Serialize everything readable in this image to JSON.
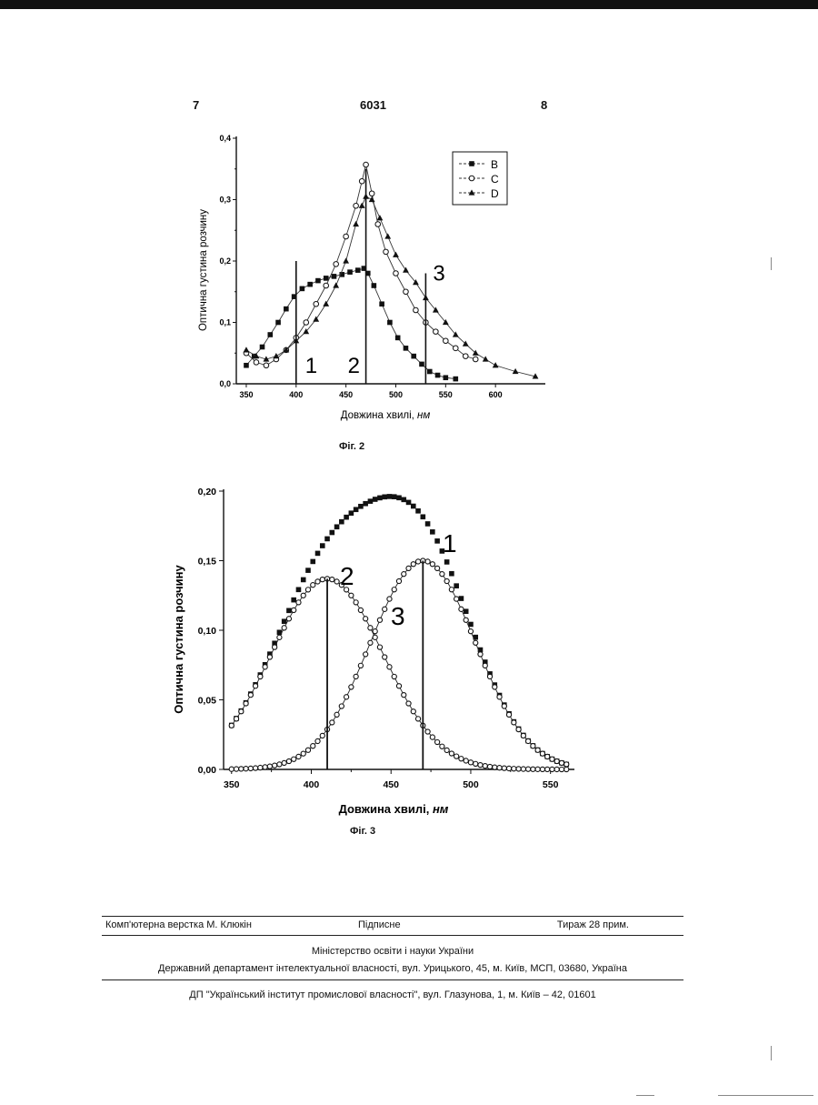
{
  "header": {
    "page_left": "7",
    "patent_number": "6031",
    "page_right": "8"
  },
  "figure2": {
    "caption": "Фіг. 2",
    "chart_data": {
      "type": "line",
      "title": "",
      "xlabel": "Довжина хвилі, ",
      "xlabel_unit": "нм",
      "ylabel": "Оптична густина розчину",
      "xlim": [
        340,
        650
      ],
      "ylim": [
        0,
        0.4
      ],
      "xticks": [
        "350",
        "400",
        "450",
        "500",
        "550",
        "600"
      ],
      "yticks": [
        "0,0",
        "0,1",
        "0,2",
        "0,3",
        "0,4"
      ],
      "legend_position": "top-right",
      "series": [
        {
          "name": "B",
          "marker": "square",
          "x": [
            350,
            358,
            366,
            374,
            382,
            390,
            398,
            406,
            414,
            422,
            430,
            438,
            446,
            454,
            462,
            468,
            472,
            478,
            486,
            494,
            502,
            510,
            518,
            526,
            534,
            542,
            550,
            560
          ],
          "y": [
            0.03,
            0.045,
            0.06,
            0.08,
            0.1,
            0.122,
            0.142,
            0.155,
            0.162,
            0.168,
            0.172,
            0.175,
            0.178,
            0.182,
            0.185,
            0.188,
            0.18,
            0.16,
            0.13,
            0.1,
            0.075,
            0.058,
            0.045,
            0.032,
            0.02,
            0.014,
            0.01,
            0.008
          ]
        },
        {
          "name": "C",
          "marker": "circle",
          "x": [
            350,
            360,
            370,
            380,
            390,
            400,
            410,
            420,
            430,
            440,
            450,
            460,
            466,
            470,
            476,
            482,
            490,
            500,
            510,
            520,
            530,
            540,
            550,
            560,
            570,
            580
          ],
          "y": [
            0.05,
            0.035,
            0.03,
            0.04,
            0.055,
            0.075,
            0.1,
            0.13,
            0.16,
            0.195,
            0.24,
            0.29,
            0.33,
            0.357,
            0.31,
            0.26,
            0.215,
            0.18,
            0.15,
            0.12,
            0.1,
            0.085,
            0.07,
            0.058,
            0.045,
            0.04
          ]
        },
        {
          "name": "D",
          "marker": "triangle",
          "x": [
            350,
            360,
            370,
            380,
            390,
            400,
            410,
            420,
            430,
            440,
            450,
            460,
            466,
            470,
            476,
            484,
            492,
            500,
            510,
            520,
            530,
            540,
            550,
            560,
            570,
            580,
            590,
            600,
            620,
            640
          ],
          "y": [
            0.055,
            0.045,
            0.04,
            0.045,
            0.055,
            0.07,
            0.085,
            0.105,
            0.13,
            0.16,
            0.2,
            0.26,
            0.29,
            0.305,
            0.3,
            0.27,
            0.24,
            0.21,
            0.185,
            0.165,
            0.14,
            0.12,
            0.1,
            0.08,
            0.065,
            0.05,
            0.04,
            0.03,
            0.02,
            0.012
          ]
        }
      ],
      "markers": [
        {
          "label": "1",
          "x": 400,
          "y_top": 0.2
        },
        {
          "label": "2",
          "x": 470,
          "y_top": 0.35
        },
        {
          "label": "3",
          "x": 530,
          "y_top": 0.18
        }
      ]
    }
  },
  "figure3": {
    "caption": "Фіг. 3",
    "chart_data": {
      "type": "scatter",
      "title": "",
      "xlabel": "Довжина хвилі, ",
      "xlabel_unit": "нм",
      "ylabel": "Оптична густина розчину",
      "xlim": [
        345,
        565
      ],
      "ylim": [
        0,
        0.2
      ],
      "xticks": [
        "350",
        "400",
        "450",
        "500",
        "550"
      ],
      "yticks": [
        "0,00",
        "0,05",
        "0,10",
        "0,15",
        "0,20"
      ],
      "series": [
        {
          "label": "1",
          "marker": "square-filled",
          "x_start": 350,
          "x_end": 560,
          "x_step": 3,
          "components": [
            {
              "a": 0.137,
              "center": 410,
              "width": 35
            },
            {
              "a": 0.15,
              "center": 470,
              "width": 33
            }
          ]
        },
        {
          "label": "2",
          "marker": "circle-open",
          "x_start": 350,
          "x_end": 560,
          "x_step": 3,
          "gaussian": {
            "a": 0.137,
            "center": 410,
            "width": 35
          }
        },
        {
          "label": "3",
          "marker": "circle-open",
          "x_start": 350,
          "x_end": 560,
          "x_step": 3,
          "gaussian": {
            "a": 0.15,
            "center": 470,
            "width": 33
          }
        }
      ],
      "peak_lines": [
        {
          "label": "2",
          "x": 410,
          "y": 0.137
        },
        {
          "label": "3",
          "x": 470,
          "y": 0.15
        }
      ]
    }
  },
  "footer": {
    "typesetting": "Комп'ютерна верстка М. Клюкін",
    "signature": "Підписне",
    "print_run": "Тираж 28 прим.",
    "ministry": "Міністерство освіти і науки України",
    "department": "Державний департамент інтелектуальної власності, вул. Урицького, 45, м. Київ, МСП, 03680, Україна",
    "institute": "ДП \"Український інститут промислової власності\", вул. Глазунова, 1, м. Київ – 42, 01601"
  }
}
